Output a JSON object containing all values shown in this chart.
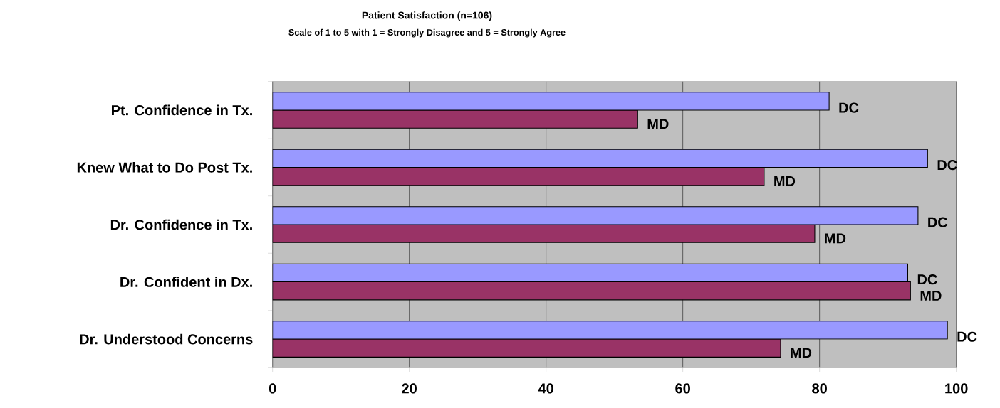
{
  "chart_data": {
    "type": "bar",
    "orientation": "horizontal",
    "title": "Patient Satisfaction (n=106)",
    "subtitle": "Scale of 1 to 5 with 1 = Strongly Disagree and 5 = Strongly Agree",
    "categories": [
      "Pt. Confidence in Tx.",
      "Knew What to Do Post Tx.",
      "Dr. Confidence in Tx.",
      "Dr. Confident in Dx.",
      "Dr. Understood Concerns"
    ],
    "series": [
      {
        "name": "MD",
        "color": "#993366",
        "values": [
          53.4,
          71.9,
          79.3,
          93.3,
          74.3
        ]
      },
      {
        "name": "DC",
        "color": "#9999ff",
        "values": [
          81.4,
          95.8,
          94.4,
          92.9,
          98.7
        ]
      }
    ],
    "xlim": [
      0,
      100
    ],
    "xticks": [
      0,
      20,
      40,
      60,
      80,
      100
    ],
    "grid": "x",
    "legend": false
  }
}
